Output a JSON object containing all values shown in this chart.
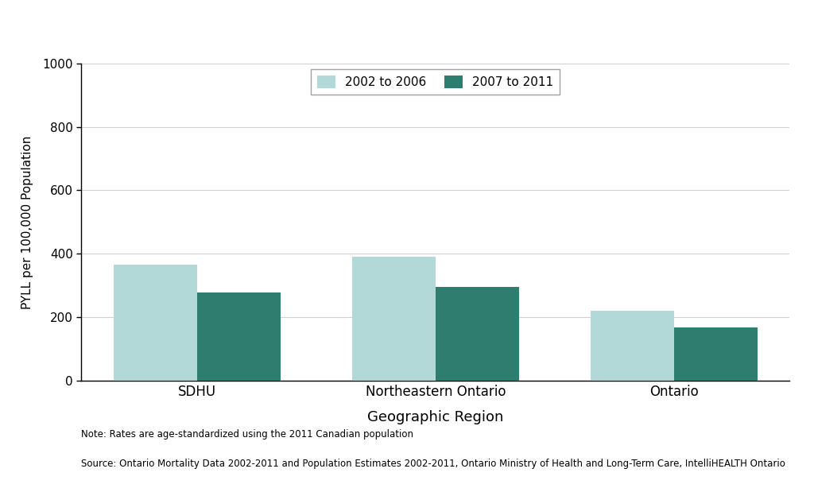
{
  "categories": [
    "SDHU",
    "Northeastern Ontario",
    "Ontario"
  ],
  "values_2002_2006": [
    365,
    390,
    220
  ],
  "values_2007_2011": [
    278,
    295,
    168
  ],
  "color_2002_2006": "#b2d8d8",
  "color_2007_2011": "#2e7d6e",
  "legend_labels": [
    "2002 to 2006",
    "2007 to 2011"
  ],
  "xlabel": "Geographic Region",
  "ylabel": "PYLL per 100,000 Population",
  "ylim": [
    0,
    1000
  ],
  "yticks": [
    0,
    200,
    400,
    600,
    800,
    1000
  ],
  "note_line1": "Note: Rates are age-standardized using the 2011 Canadian population",
  "note_line2": "Source: Ontario Mortality Data 2002-2011 and Population Estimates 2002-2011, Ontario Ministry of Health and Long-Term Care, IntelliHEALTH Ontario",
  "bar_width": 0.35,
  "background_color": "#ffffff",
  "grid_color": "#d0d0d0"
}
